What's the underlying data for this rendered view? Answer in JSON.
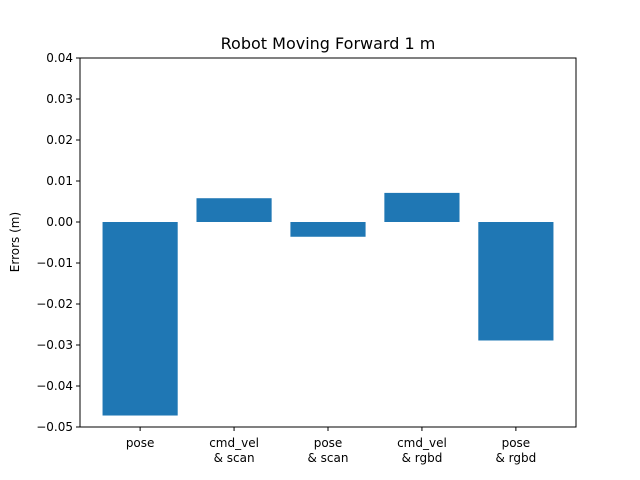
{
  "chart_data": {
    "type": "bar",
    "title": "Robot Moving Forward 1 m",
    "xlabel": "",
    "ylabel": "Errors (m)",
    "categories": [
      [
        "pose"
      ],
      [
        "cmd_vel",
        "& scan"
      ],
      [
        "pose",
        "& scan"
      ],
      [
        "cmd_vel",
        "& rgbd"
      ],
      [
        "pose",
        "& rgbd"
      ]
    ],
    "values": [
      -0.0472,
      0.0058,
      -0.0036,
      0.0071,
      -0.0289
    ],
    "ylim": [
      -0.05,
      0.04
    ],
    "yticks": [
      "−0.05",
      "−0.04",
      "−0.03",
      "−0.02",
      "−0.01",
      "0.00",
      "0.01",
      "0.02",
      "0.03",
      "0.04"
    ],
    "ytick_values": [
      -0.05,
      -0.04,
      -0.03,
      -0.02,
      -0.01,
      0.0,
      0.01,
      0.02,
      0.03,
      0.04
    ],
    "grid": false,
    "colors": {
      "bar": "#1f77b4",
      "axis": "#000000",
      "background": "#ffffff"
    }
  }
}
